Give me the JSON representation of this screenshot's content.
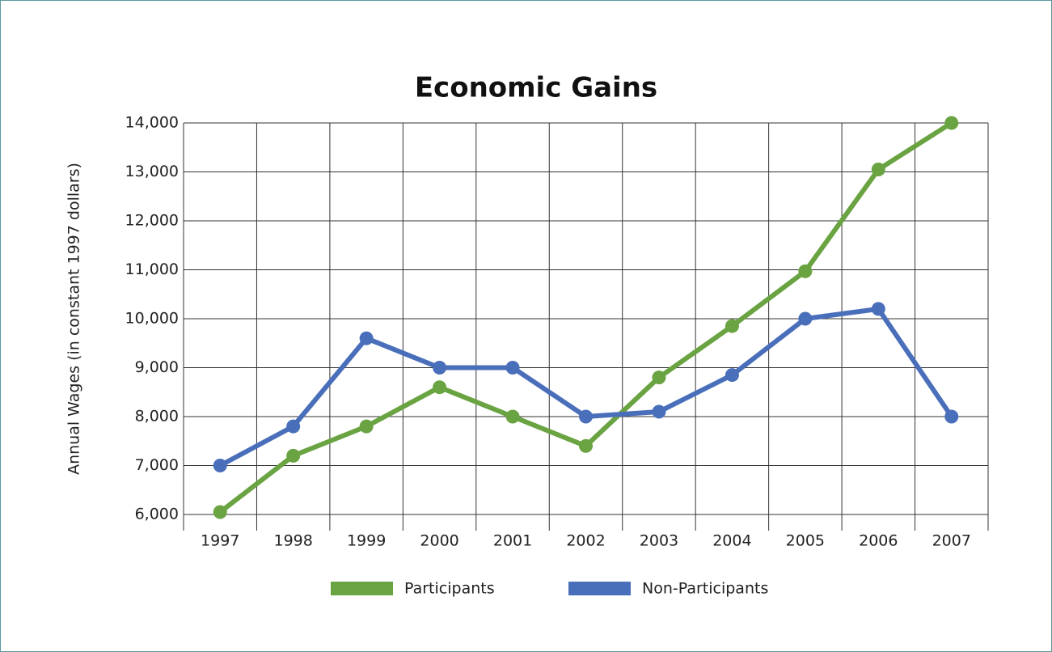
{
  "chart_data": {
    "type": "line",
    "title": "Economic Gains",
    "y_label": "Annual Wages (in constant 1997 dollars)",
    "categories": [
      "1997",
      "1998",
      "1999",
      "2000",
      "2001",
      "2002",
      "2003",
      "2004",
      "2005",
      "2006",
      "2007"
    ],
    "series": [
      {
        "name": "Participants",
        "color": "#6aa342",
        "values": [
          6050,
          7200,
          7800,
          8600,
          8000,
          7400,
          8800,
          9850,
          10970,
          13050,
          14000
        ]
      },
      {
        "name": "Non-Participants",
        "color": "#4a6fba",
        "values": [
          7000,
          7800,
          9600,
          9000,
          9000,
          8000,
          8100,
          8850,
          10000,
          10200,
          8000
        ]
      }
    ],
    "ylim": [
      6000,
      14000
    ],
    "yticks": [
      {
        "value": 6000,
        "label": "6,000"
      },
      {
        "value": 7000,
        "label": "7,000"
      },
      {
        "value": 8000,
        "label": "8,000"
      },
      {
        "value": 9000,
        "label": "9,000"
      },
      {
        "value": 10000,
        "label": "10,000"
      },
      {
        "value": 11000,
        "label": "11,000"
      },
      {
        "value": 12000,
        "label": "12,000"
      },
      {
        "value": 13000,
        "label": "13,000"
      },
      {
        "value": 14000,
        "label": "14,000"
      }
    ],
    "grid": true,
    "legend": "bottom"
  }
}
